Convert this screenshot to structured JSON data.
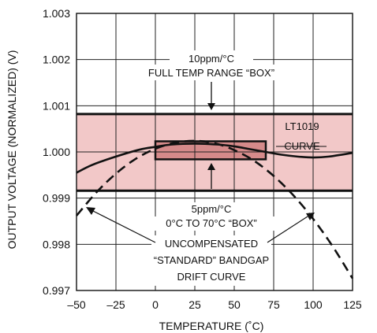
{
  "chart_data": {
    "type": "line",
    "xlabel": "TEMPERATURE (˚C)",
    "ylabel": "OUTPUT VOLTAGE (NORMALIZED) (V)",
    "xlim": [
      -50,
      125
    ],
    "ylim": [
      0.997,
      1.003
    ],
    "x_ticks": [
      "–50",
      "–25",
      "0",
      "25",
      "50",
      "75",
      "100",
      "125"
    ],
    "y_ticks": [
      "0.997",
      "0.998",
      "0.999",
      "1.000",
      "1.001",
      "1.002",
      "1.003"
    ],
    "grid": true,
    "series": [
      {
        "name": "LT1019 CURVE",
        "style": "solid",
        "x": [
          -50,
          -40,
          -25,
          -10,
          0,
          10,
          25,
          40,
          50,
          60,
          70,
          80,
          90,
          100,
          110,
          125
        ],
        "y": [
          0.99955,
          0.99972,
          0.9999,
          1.00005,
          1.00011,
          1.00016,
          1.00018,
          1.00016,
          1.00012,
          1.00006,
          1.0,
          0.99994,
          0.9999,
          0.99988,
          0.9999,
          0.99998
        ]
      },
      {
        "name": "UNCOMPENSATED “STANDARD” BANDGAP DRIFT CURVE",
        "style": "dashed",
        "x": [
          -50,
          -37.5,
          -25,
          -12.5,
          0,
          12.5,
          25,
          37.5,
          50,
          62.5,
          75,
          87.5,
          100,
          112.5,
          125
        ],
        "y": [
          0.99862,
          0.99912,
          0.99953,
          0.99985,
          1.00007,
          1.0002,
          1.00024,
          1.00019,
          1.00004,
          0.99981,
          0.99948,
          0.99906,
          0.99855,
          0.99795,
          0.99726
        ]
      }
    ],
    "regions": [
      {
        "name": "full-temp-range-box",
        "x": [
          -50,
          125
        ],
        "y": [
          0.99916,
          1.00082
        ],
        "fill": "#f2c8c8",
        "stroke": "#111111"
      },
      {
        "name": "0-70c-box",
        "x": [
          0,
          70
        ],
        "y": [
          0.99984,
          1.00023
        ],
        "fill": "#d58a8a",
        "stroke": "#111111"
      }
    ],
    "annotations": {
      "box_full_line1": "10ppm/°C",
      "box_full_line2": "FULL TEMP RANGE “BOX”",
      "lt_line1": "LT1019",
      "lt_line2": "CURVE",
      "box_small_line1": "5ppm/°C",
      "box_small_line2": "0°C TO 70°C “BOX”",
      "uncomp_line1": "UNCOMPENSATED",
      "uncomp_line2": "“STANDARD” BANDGAP",
      "uncomp_line3": "DRIFT CURVE"
    }
  }
}
